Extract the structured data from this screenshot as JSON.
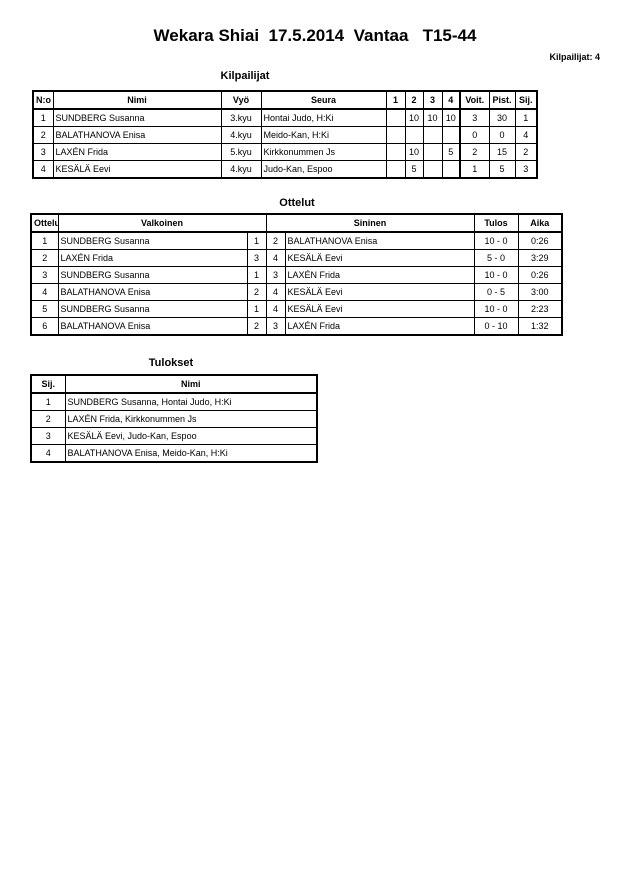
{
  "title": "Wekara Shiai  17.5.2014  Vantaa   T15-44",
  "count": "Kilpailijat: 4",
  "competitors": {
    "title": "Kilpailijat",
    "headers": [
      "N:o",
      "Nimi",
      "Vyö",
      "Seura",
      "1",
      "2",
      "3",
      "4",
      "Voit.",
      "Pist.",
      "Sij."
    ],
    "rows": [
      [
        1,
        "SUNDBERG Susanna",
        "3.kyu",
        "Hontai Judo, H:Ki",
        null,
        10,
        10,
        10,
        3,
        30,
        1
      ],
      [
        2,
        "BALATHANOVA Enisa",
        "4.kyu",
        "Meido-Kan, H:Ki",
        null,
        null,
        null,
        null,
        0,
        0,
        4
      ],
      [
        3,
        "LAXÉN Frida",
        "5.kyu",
        "Kirkkonummen Js",
        null,
        10,
        null,
        5,
        2,
        15,
        2
      ],
      [
        4,
        "KESÄLÄ Eevi",
        "4.kyu",
        "Judo-Kan, Espoo",
        null,
        5,
        null,
        null,
        1,
        5,
        3
      ]
    ]
  },
  "matches": {
    "title": "Ottelut",
    "headers": [
      "Ottelu",
      "Valkoinen",
      "Sininen",
      "Tulos",
      "Aika"
    ],
    "rows": [
      [
        1,
        "SUNDBERG Susanna",
        1,
        2,
        "BALATHANOVA Enisa",
        "10 - 0",
        "0:26"
      ],
      [
        2,
        "LAXÉN Frida",
        3,
        4,
        "KESÄLÄ Eevi",
        "5 - 0",
        "3:29"
      ],
      [
        3,
        "SUNDBERG Susanna",
        1,
        3,
        "LAXÉN Frida",
        "10 - 0",
        "0:26"
      ],
      [
        4,
        "BALATHANOVA Enisa",
        2,
        4,
        "KESÄLÄ Eevi",
        "0 - 5",
        "3:00"
      ],
      [
        5,
        "SUNDBERG Susanna",
        1,
        4,
        "KESÄLÄ Eevi",
        "10 - 0",
        "2:23"
      ],
      [
        6,
        "BALATHANOVA Enisa",
        2,
        3,
        "LAXÉN Frida",
        "0 - 10",
        "1:32"
      ]
    ]
  },
  "results": {
    "title": "Tulokset",
    "headers": [
      "Sij.",
      "Nimi"
    ],
    "rows": [
      [
        1,
        "SUNDBERG Susanna, Hontai Judo, H:Ki"
      ],
      [
        2,
        "LAXÉN Frida, Kirkkonummen Js"
      ],
      [
        3,
        "KESÄLÄ Eevi, Judo-Kan, Espoo"
      ],
      [
        4,
        "BALATHANOVA Enisa, Meido-Kan, H:Ki"
      ]
    ]
  }
}
